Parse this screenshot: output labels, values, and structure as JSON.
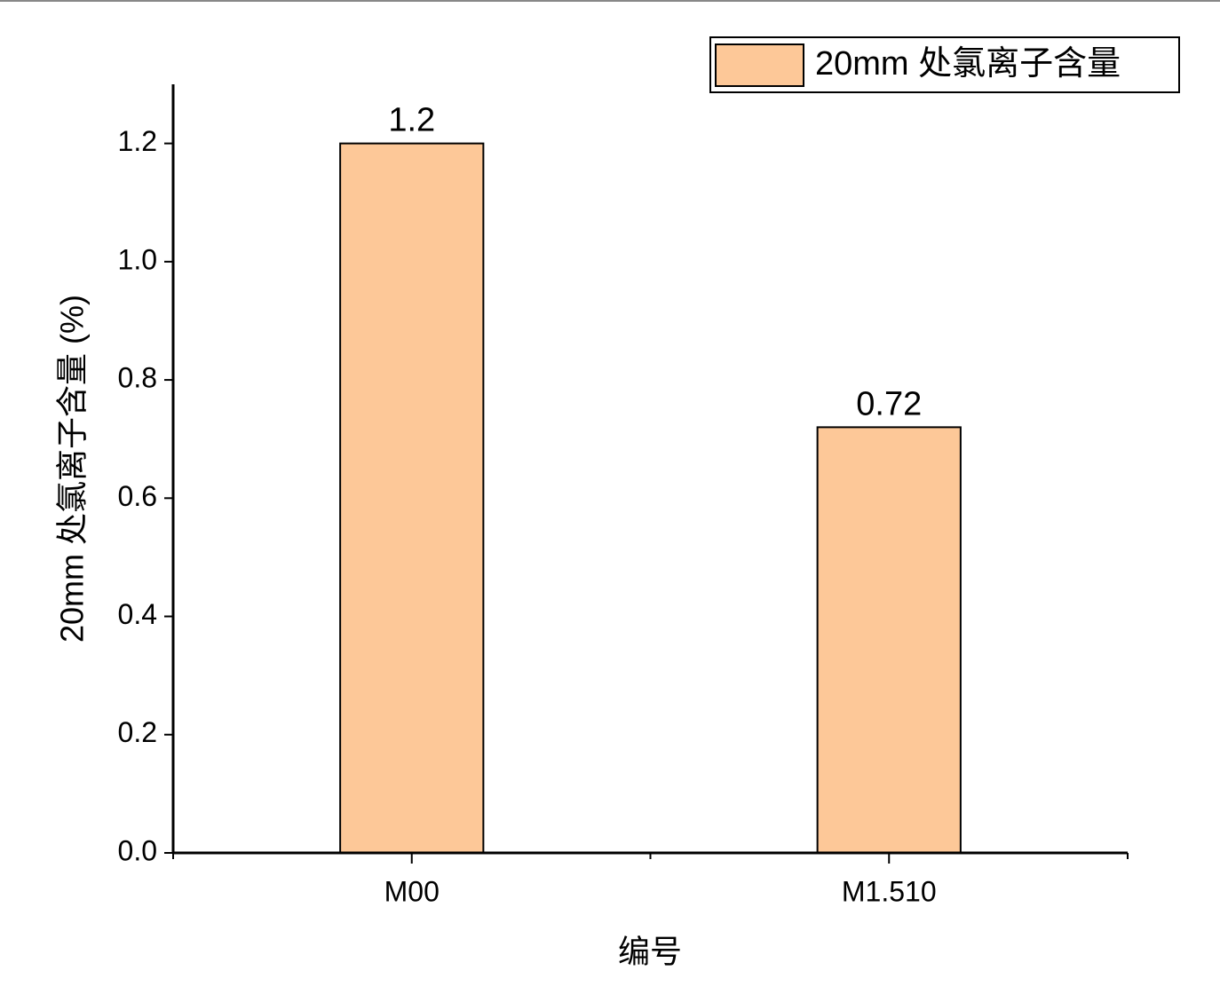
{
  "chart_data": {
    "type": "bar",
    "categories": [
      "M00",
      "M1.510"
    ],
    "series": [
      {
        "name": "20mm 处氯离子含量",
        "color": "#fdc898",
        "values": [
          1.2,
          0.72
        ]
      }
    ],
    "x_label": "编号",
    "y_label": "20mm 处氯离子含量 (%)",
    "ylim": [
      0,
      1.3
    ],
    "yticks": [
      {
        "value": 0,
        "label": "0.0"
      },
      0.2,
      0.4,
      0.6,
      0.8,
      {
        "value": 1,
        "label": "1.0"
      },
      1.2
    ],
    "grid": false,
    "legend": "top-right"
  }
}
